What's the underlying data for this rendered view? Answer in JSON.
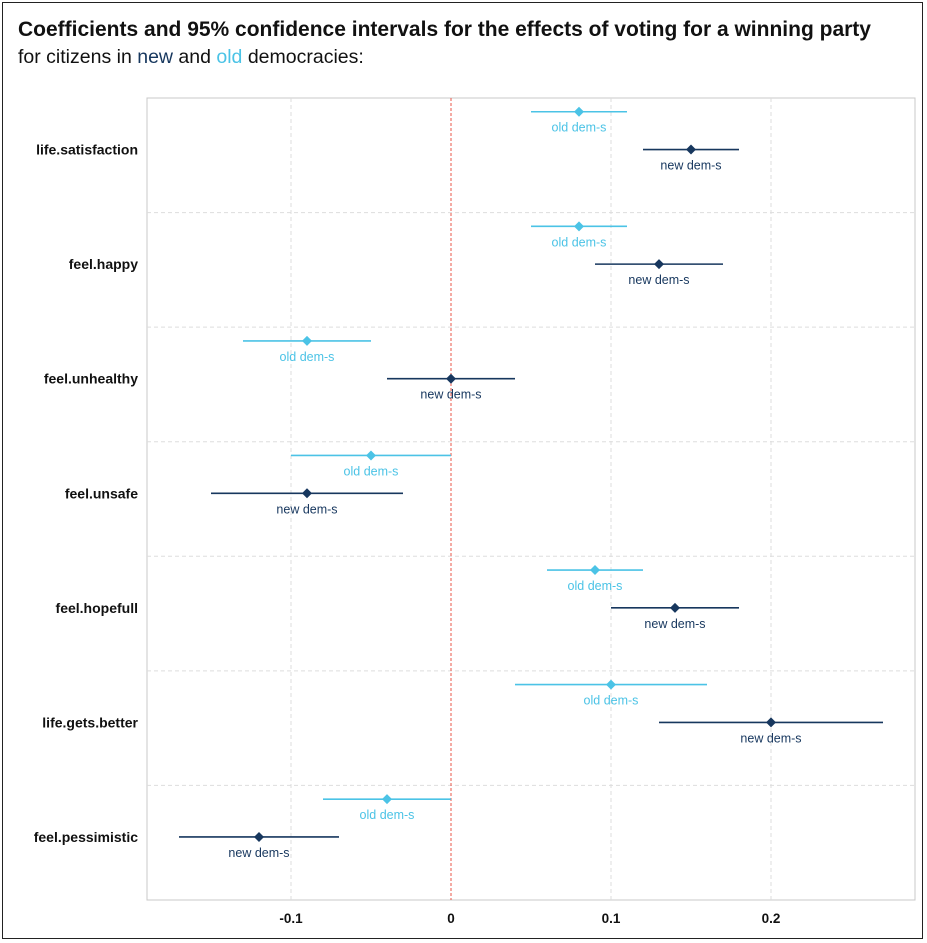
{
  "title_main": "Coefficients and 95% confidence intervals for the effects of voting for a winning party",
  "subtitle": {
    "prefix": "for citizens in ",
    "new_word": "new",
    "middle": " and ",
    "old_word": "old",
    "suffix": " democracies:"
  },
  "chart_data": {
    "type": "forest",
    "title": "Coefficients and 95% confidence intervals for the effects of voting for a winning party",
    "subtitle": "for citizens in new and old democracies:",
    "xlim": [
      -0.19,
      0.29
    ],
    "xticks": [
      -0.1,
      0,
      0.1,
      0.2
    ],
    "xtick_labels": [
      "-0.1",
      "0",
      "0.1",
      "0.2"
    ],
    "grid": true,
    "reference_line": {
      "x": 0,
      "style": "dashed",
      "color": "#e8574a"
    },
    "categories": [
      "life.satisfaction",
      "feel.happy",
      "feel.unhealthy",
      "feel.unsafe",
      "feel.hopefull",
      "life.gets.better",
      "feel.pessimistic"
    ],
    "series": [
      {
        "point_label": "old dem-s",
        "color": "#4bc3e6",
        "estimates": [
          0.08,
          0.08,
          -0.09,
          -0.05,
          0.09,
          0.1,
          -0.04
        ],
        "lower": [
          0.05,
          0.05,
          -0.13,
          -0.1,
          0.06,
          0.04,
          -0.08
        ],
        "upper": [
          0.11,
          0.11,
          -0.05,
          0.0,
          0.12,
          0.16,
          0.0
        ]
      },
      {
        "point_label": "new dem-s",
        "color": "#17375e",
        "estimates": [
          0.15,
          0.13,
          0.0,
          -0.09,
          0.14,
          0.2,
          -0.12
        ],
        "lower": [
          0.12,
          0.09,
          -0.04,
          -0.15,
          0.1,
          0.13,
          -0.17
        ],
        "upper": [
          0.18,
          0.17,
          0.04,
          -0.03,
          0.18,
          0.27,
          -0.07
        ]
      }
    ]
  }
}
